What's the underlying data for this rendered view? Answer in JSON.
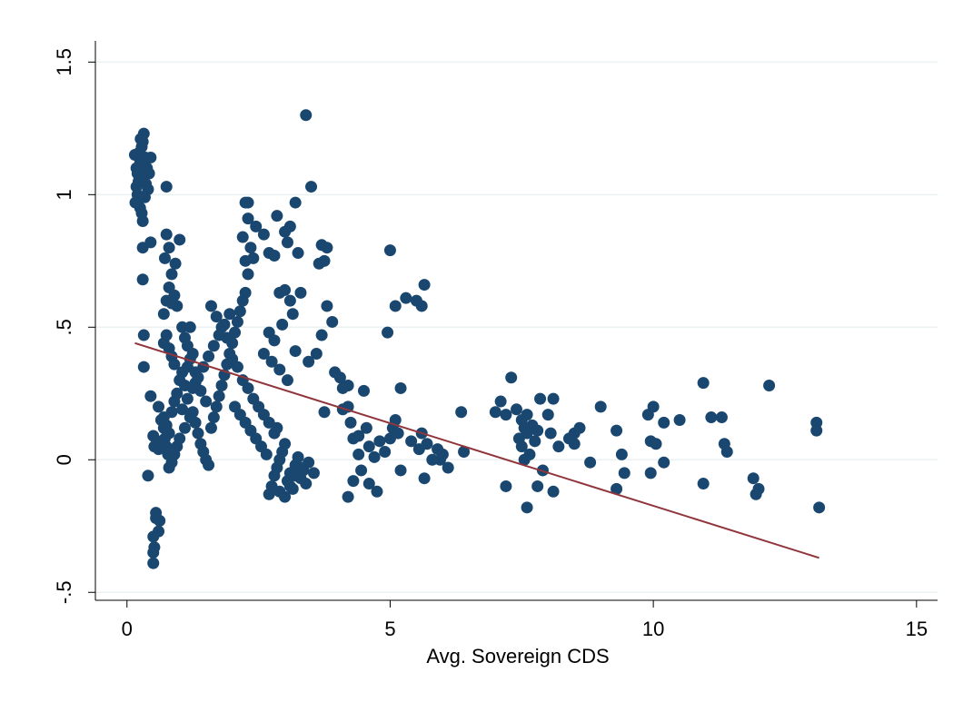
{
  "chart_data": {
    "type": "scatter",
    "title": "",
    "xlabel": "Avg. Sovereign CDS",
    "ylabel": "",
    "xlim": [
      -0.6,
      15.4
    ],
    "ylim": [
      -0.53,
      1.58
    ],
    "x_ticks": [
      0,
      5,
      10,
      15
    ],
    "x_tick_labels": [
      "0",
      "5",
      "10",
      "15"
    ],
    "y_ticks": [
      -0.5,
      0,
      0.5,
      1,
      1.5
    ],
    "y_tick_labels": [
      "-.5",
      "0",
      ".5",
      "1",
      "1.5"
    ],
    "grid": "horizontal",
    "legend": "none",
    "colors": {
      "points": "#1a476f",
      "fit_line": "#90353b",
      "gridlines": "#eaf2f3",
      "axes": "#000000"
    },
    "series": [
      {
        "kind": "scatter",
        "points": [
          [
            0.15,
            1.15
          ],
          [
            0.18,
            1.1
          ],
          [
            0.2,
            1.08
          ],
          [
            0.22,
            1.05
          ],
          [
            0.25,
            1.12
          ],
          [
            0.28,
            1.18
          ],
          [
            0.3,
            1.2
          ],
          [
            0.32,
            1.23
          ],
          [
            0.35,
            1.14
          ],
          [
            0.38,
            1.1
          ],
          [
            0.2,
            1.0
          ],
          [
            0.22,
            0.98
          ],
          [
            0.25,
            0.95
          ],
          [
            0.28,
            0.93
          ],
          [
            0.3,
            0.9
          ],
          [
            0.18,
            1.03
          ],
          [
            0.33,
            1.07
          ],
          [
            0.36,
            1.04
          ],
          [
            0.4,
            1.02
          ],
          [
            0.42,
            1.08
          ],
          [
            0.24,
            1.16
          ],
          [
            0.26,
            1.21
          ],
          [
            0.45,
            1.14
          ],
          [
            0.34,
            0.99
          ],
          [
            0.16,
            0.97
          ],
          [
            0.3,
            0.8
          ],
          [
            0.3,
            0.68
          ],
          [
            0.45,
            0.82
          ],
          [
            0.75,
            1.03
          ],
          [
            0.32,
            0.47
          ],
          [
            0.32,
            0.35
          ],
          [
            0.4,
            -0.06
          ],
          [
            0.45,
            0.24
          ],
          [
            0.5,
            0.09
          ],
          [
            0.52,
            0.05
          ],
          [
            0.55,
            -0.2
          ],
          [
            0.55,
            -0.22
          ],
          [
            0.5,
            -0.29
          ],
          [
            0.52,
            -0.33
          ],
          [
            0.5,
            -0.35
          ],
          [
            0.5,
            -0.39
          ],
          [
            0.6,
            -0.27
          ],
          [
            0.62,
            -0.23
          ],
          [
            0.6,
            0.2
          ],
          [
            0.65,
            0.15
          ],
          [
            0.7,
            0.12
          ],
          [
            0.72,
            0.08
          ],
          [
            0.75,
            0.05
          ],
          [
            0.78,
            0.02
          ],
          [
            0.8,
            -0.03
          ],
          [
            0.85,
            0.18
          ],
          [
            0.9,
            0.22
          ],
          [
            0.95,
            0.25
          ],
          [
            1.0,
            0.3
          ],
          [
            1.05,
            0.33
          ],
          [
            1.1,
            0.28
          ],
          [
            1.15,
            0.35
          ],
          [
            1.2,
            0.38
          ],
          [
            1.25,
            0.4
          ],
          [
            1.3,
            0.33
          ],
          [
            0.7,
            0.44
          ],
          [
            0.75,
            0.47
          ],
          [
            0.8,
            0.42
          ],
          [
            0.85,
            0.39
          ],
          [
            0.9,
            0.36
          ],
          [
            0.7,
            0.55
          ],
          [
            0.75,
            0.6
          ],
          [
            0.8,
            0.65
          ],
          [
            0.85,
            0.7
          ],
          [
            0.9,
            0.62
          ],
          [
            0.72,
            0.76
          ],
          [
            0.8,
            0.8
          ],
          [
            0.75,
            0.85
          ],
          [
            0.85,
            0.59
          ],
          [
            0.95,
            0.58
          ],
          [
            1.0,
            0.83
          ],
          [
            0.92,
            0.74
          ],
          [
            1.05,
            0.5
          ],
          [
            1.1,
            0.46
          ],
          [
            1.15,
            0.43
          ],
          [
            1.2,
            0.5
          ],
          [
            1.25,
            0.18
          ],
          [
            1.3,
            0.14
          ],
          [
            1.35,
            0.1
          ],
          [
            1.4,
            0.06
          ],
          [
            1.45,
            0.03
          ],
          [
            1.5,
            0.0
          ],
          [
            1.55,
            -0.02
          ],
          [
            1.6,
            0.12
          ],
          [
            1.65,
            0.16
          ],
          [
            1.7,
            0.2
          ],
          [
            1.75,
            0.24
          ],
          [
            1.8,
            0.28
          ],
          [
            1.85,
            0.32
          ],
          [
            1.9,
            0.36
          ],
          [
            1.95,
            0.4
          ],
          [
            2.0,
            0.44
          ],
          [
            2.05,
            0.48
          ],
          [
            2.1,
            0.52
          ],
          [
            2.15,
            0.56
          ],
          [
            2.2,
            0.6
          ],
          [
            2.25,
            0.63
          ],
          [
            1.6,
            0.58
          ],
          [
            1.7,
            0.54
          ],
          [
            1.8,
            0.5
          ],
          [
            1.9,
            0.46
          ],
          [
            2.0,
            0.38
          ],
          [
            2.1,
            0.35
          ],
          [
            2.2,
            0.3
          ],
          [
            2.3,
            0.27
          ],
          [
            2.4,
            0.23
          ],
          [
            2.5,
            0.2
          ],
          [
            2.6,
            0.17
          ],
          [
            2.7,
            0.14
          ],
          [
            1.5,
            0.22
          ],
          [
            1.4,
            0.26
          ],
          [
            1.3,
            0.29
          ],
          [
            1.2,
            0.16
          ],
          [
            1.1,
            0.12
          ],
          [
            1.0,
            0.08
          ],
          [
            0.95,
            0.05
          ],
          [
            0.9,
            0.02
          ],
          [
            0.85,
            -0.01
          ],
          [
            0.8,
            0.1
          ],
          [
            0.75,
            0.13
          ],
          [
            0.7,
            0.16
          ],
          [
            0.65,
            0.07
          ],
          [
            0.6,
            0.04
          ],
          [
            1.05,
            0.19
          ],
          [
            1.15,
            0.23
          ],
          [
            1.25,
            0.27
          ],
          [
            1.35,
            0.31
          ],
          [
            1.45,
            0.35
          ],
          [
            1.55,
            0.39
          ],
          [
            1.65,
            0.43
          ],
          [
            1.75,
            0.47
          ],
          [
            1.85,
            0.51
          ],
          [
            1.95,
            0.55
          ],
          [
            2.05,
            0.2
          ],
          [
            2.15,
            0.17
          ],
          [
            2.25,
            0.14
          ],
          [
            2.35,
            0.11
          ],
          [
            2.45,
            0.08
          ],
          [
            2.55,
            0.05
          ],
          [
            2.65,
            0.02
          ],
          [
            2.3,
            0.97
          ],
          [
            2.25,
            0.97
          ],
          [
            2.3,
            0.91
          ],
          [
            2.2,
            0.84
          ],
          [
            2.35,
            0.8
          ],
          [
            2.4,
            0.76
          ],
          [
            2.25,
            0.75
          ],
          [
            2.3,
            0.7
          ],
          [
            2.45,
            0.88
          ],
          [
            2.6,
            0.85
          ],
          [
            2.7,
            0.78
          ],
          [
            2.8,
            0.77
          ],
          [
            2.85,
            0.92
          ],
          [
            3.0,
            0.86
          ],
          [
            3.05,
            0.82
          ],
          [
            3.1,
            0.88
          ],
          [
            3.2,
            0.97
          ],
          [
            3.25,
            0.78
          ],
          [
            2.9,
            0.63
          ],
          [
            3.0,
            0.64
          ],
          [
            3.1,
            0.6
          ],
          [
            3.15,
            0.55
          ],
          [
            2.95,
            0.51
          ],
          [
            2.7,
            0.48
          ],
          [
            2.8,
            0.45
          ],
          [
            2.6,
            0.4
          ],
          [
            2.75,
            0.37
          ],
          [
            2.9,
            0.34
          ],
          [
            3.05,
            0.3
          ],
          [
            3.3,
            0.63
          ],
          [
            3.2,
            0.41
          ],
          [
            2.7,
            -0.13
          ],
          [
            2.75,
            -0.1
          ],
          [
            2.8,
            -0.06
          ],
          [
            2.85,
            -0.03
          ],
          [
            2.9,
            0.0
          ],
          [
            2.95,
            0.03
          ],
          [
            3.0,
            0.06
          ],
          [
            3.05,
            -0.08
          ],
          [
            3.1,
            -0.05
          ],
          [
            3.15,
            -0.11
          ],
          [
            3.2,
            -0.02
          ],
          [
            3.25,
            0.01
          ],
          [
            3.3,
            -0.07
          ],
          [
            3.35,
            -0.04
          ],
          [
            3.4,
            -0.09
          ],
          [
            2.8,
            0.1
          ],
          [
            2.85,
            0.12
          ],
          [
            2.9,
            -0.12
          ],
          [
            3.0,
            -0.14
          ],
          [
            3.1,
            -0.1
          ],
          [
            3.2,
            -0.06
          ],
          [
            3.3,
            -0.03
          ],
          [
            3.45,
            -0.01
          ],
          [
            3.55,
            -0.05
          ],
          [
            3.4,
            1.3
          ],
          [
            3.5,
            1.03
          ],
          [
            3.7,
            0.81
          ],
          [
            3.8,
            0.8
          ],
          [
            3.65,
            0.74
          ],
          [
            3.75,
            0.75
          ],
          [
            3.8,
            0.58
          ],
          [
            3.7,
            0.47
          ],
          [
            3.6,
            0.4
          ],
          [
            3.45,
            0.37
          ],
          [
            3.9,
            0.52
          ],
          [
            3.75,
            0.18
          ],
          [
            3.95,
            0.33
          ],
          [
            4.05,
            0.31
          ],
          [
            4.1,
            0.27
          ],
          [
            4.2,
            0.28
          ],
          [
            4.1,
            0.19
          ],
          [
            4.2,
            0.2
          ],
          [
            4.3,
            0.08
          ],
          [
            4.5,
            0.26
          ],
          [
            4.25,
            0.14
          ],
          [
            4.4,
            0.09
          ],
          [
            4.55,
            0.12
          ],
          [
            4.6,
            0.05
          ],
          [
            4.7,
            0.01
          ],
          [
            4.4,
            0.02
          ],
          [
            4.45,
            -0.04
          ],
          [
            4.6,
            -0.09
          ],
          [
            4.75,
            -0.12
          ],
          [
            4.3,
            -0.08
          ],
          [
            4.2,
            -0.14
          ],
          [
            4.8,
            0.07
          ],
          [
            4.9,
            0.03
          ],
          [
            5.0,
            0.79
          ],
          [
            4.95,
            0.48
          ],
          [
            5.1,
            0.58
          ],
          [
            5.3,
            0.61
          ],
          [
            5.5,
            0.6
          ],
          [
            5.6,
            0.58
          ],
          [
            5.65,
            0.66
          ],
          [
            5.2,
            0.27
          ],
          [
            5.1,
            0.15
          ],
          [
            5.05,
            0.12
          ],
          [
            5.15,
            0.1
          ],
          [
            5.0,
            0.08
          ],
          [
            5.2,
            -0.04
          ],
          [
            5.4,
            0.07
          ],
          [
            5.55,
            0.04
          ],
          [
            5.6,
            0.1
          ],
          [
            5.7,
            0.06
          ],
          [
            5.9,
            0.04
          ],
          [
            5.95,
            0.0
          ],
          [
            6.1,
            -0.03
          ],
          [
            6.0,
            0.02
          ],
          [
            5.8,
            0.0
          ],
          [
            5.65,
            -0.07
          ],
          [
            6.35,
            0.18
          ],
          [
            6.4,
            0.03
          ],
          [
            7.0,
            0.18
          ],
          [
            7.1,
            0.22
          ],
          [
            7.2,
            0.17
          ],
          [
            7.3,
            0.31
          ],
          [
            7.4,
            0.19
          ],
          [
            7.5,
            0.15
          ],
          [
            7.55,
            0.12
          ],
          [
            7.6,
            0.1
          ],
          [
            7.45,
            0.08
          ],
          [
            7.5,
            0.05
          ],
          [
            7.6,
            0.17
          ],
          [
            7.7,
            0.13
          ],
          [
            7.75,
            0.07
          ],
          [
            7.8,
            0.11
          ],
          [
            7.85,
            0.23
          ],
          [
            7.65,
            0.02
          ],
          [
            7.55,
            0.0
          ],
          [
            7.9,
            -0.04
          ],
          [
            7.8,
            -0.1
          ],
          [
            7.6,
            -0.18
          ],
          [
            7.2,
            -0.1
          ],
          [
            8.0,
            0.17
          ],
          [
            8.05,
            0.1
          ],
          [
            8.1,
            0.23
          ],
          [
            8.2,
            0.05
          ],
          [
            8.4,
            0.08
          ],
          [
            8.5,
            0.1
          ],
          [
            8.6,
            0.12
          ],
          [
            8.5,
            0.06
          ],
          [
            8.8,
            -0.01
          ],
          [
            9.0,
            0.2
          ],
          [
            9.3,
            0.11
          ],
          [
            9.4,
            0.02
          ],
          [
            9.45,
            -0.05
          ],
          [
            9.3,
            -0.11
          ],
          [
            8.1,
            -0.12
          ],
          [
            9.9,
            0.17
          ],
          [
            9.95,
            0.07
          ],
          [
            10.0,
            0.2
          ],
          [
            10.05,
            0.06
          ],
          [
            10.2,
            0.14
          ],
          [
            10.5,
            0.15
          ],
          [
            9.95,
            -0.05
          ],
          [
            10.2,
            -0.01
          ],
          [
            10.95,
            0.29
          ],
          [
            11.1,
            0.16
          ],
          [
            11.3,
            0.16
          ],
          [
            11.35,
            0.06
          ],
          [
            11.4,
            0.03
          ],
          [
            10.95,
            -0.09
          ],
          [
            12.2,
            0.28
          ],
          [
            11.9,
            -0.07
          ],
          [
            12.0,
            -0.11
          ],
          [
            11.95,
            -0.13
          ],
          [
            13.1,
            0.14
          ],
          [
            13.1,
            0.11
          ],
          [
            13.15,
            -0.18
          ]
        ]
      },
      {
        "kind": "fitted_line",
        "points": [
          [
            0.15,
            0.44
          ],
          [
            13.15,
            -0.37
          ]
        ]
      }
    ]
  }
}
